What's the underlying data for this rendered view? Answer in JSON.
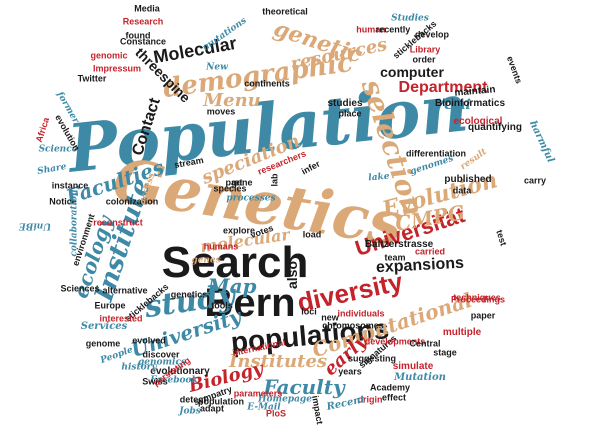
{
  "colors": {
    "blue": "#3e8aa6",
    "tan": "#dba877",
    "red": "#c4232b",
    "black": "#1a1a1a"
  },
  "words": [
    {
      "id": "population",
      "text": "Population",
      "color": "blue",
      "font": "script"
    },
    {
      "id": "genetics",
      "text": "Genetics",
      "color": "tan",
      "font": "script"
    },
    {
      "id": "search",
      "text": "Search",
      "color": "black",
      "font": "sans"
    },
    {
      "id": "bern",
      "text": "Bern",
      "color": "black",
      "font": "sans"
    },
    {
      "id": "demographic",
      "text": "demographic",
      "color": "tan",
      "font": "script"
    },
    {
      "id": "universitat",
      "text": "Universität",
      "color": "red",
      "font": "sans"
    },
    {
      "id": "diversity",
      "text": "diversity",
      "color": "red",
      "font": "sans"
    },
    {
      "id": "study",
      "text": "study",
      "color": "blue",
      "font": "script"
    },
    {
      "id": "populations",
      "text": "populations",
      "color": "black",
      "font": "sans"
    },
    {
      "id": "selection",
      "text": "selection",
      "color": "tan",
      "font": "script"
    },
    {
      "id": "genetic",
      "text": "genetic",
      "color": "tan",
      "font": "script"
    },
    {
      "id": "molecular-top",
      "text": "Molecular",
      "color": "black",
      "font": "sans"
    },
    {
      "id": "menu",
      "text": "Menu",
      "color": "tan",
      "font": "script"
    },
    {
      "id": "institute",
      "text": "Institute",
      "color": "blue",
      "font": "script"
    },
    {
      "id": "faculties",
      "text": "Faculties",
      "color": "blue",
      "font": "script"
    },
    {
      "id": "evolution",
      "text": "Evolution",
      "color": "tan",
      "font": "script"
    },
    {
      "id": "cmpg",
      "text": "CMPG",
      "color": "tan",
      "font": "script"
    },
    {
      "id": "speciation",
      "text": "speciation",
      "color": "tan",
      "font": "script"
    },
    {
      "id": "expansions",
      "text": "expansions",
      "color": "black",
      "font": "sans"
    },
    {
      "id": "computational",
      "text": "Computational",
      "color": "tan",
      "font": "script"
    },
    {
      "id": "university",
      "text": "University",
      "color": "blue",
      "font": "script"
    },
    {
      "id": "molecular-mid",
      "text": "molecular",
      "color": "tan",
      "font": "script"
    },
    {
      "id": "ecology",
      "text": "ecology",
      "color": "blue",
      "font": "script"
    },
    {
      "id": "map",
      "text": "Map",
      "color": "blue",
      "font": "script"
    },
    {
      "id": "institutes",
      "text": "Institutes",
      "color": "tan",
      "font": "script"
    },
    {
      "id": "biology",
      "text": "Biology",
      "color": "red",
      "font": "script"
    },
    {
      "id": "faculty",
      "text": "Faculty",
      "color": "blue",
      "font": "script"
    },
    {
      "id": "early",
      "text": "early",
      "color": "red",
      "font": "script"
    },
    {
      "id": "department",
      "text": "Department",
      "color": "red",
      "font": "sans"
    },
    {
      "id": "computer",
      "text": "computer",
      "color": "black",
      "font": "sans"
    },
    {
      "id": "contact",
      "text": "Contact",
      "color": "black",
      "font": "sans"
    },
    {
      "id": "threespine",
      "text": "threespine",
      "color": "black",
      "font": "sans"
    },
    {
      "id": "resources",
      "text": "resources",
      "color": "tan",
      "font": "script"
    },
    {
      "id": "also",
      "text": "also",
      "color": "black",
      "font": "sans"
    },
    {
      "id": "uni",
      "text": "Uni",
      "color": "blue",
      "font": "script"
    },
    {
      "id": "studies",
      "text": "studies",
      "color": "black",
      "font": "sans"
    },
    {
      "id": "bioinformatics",
      "text": "Bioinformatics",
      "color": "black",
      "font": "sans"
    },
    {
      "id": "ecological",
      "text": "ecological",
      "color": "red",
      "font": "sans"
    },
    {
      "id": "quantifying",
      "text": "quantifying",
      "color": "black",
      "font": "sans"
    },
    {
      "id": "maintain",
      "text": "maintain",
      "color": "black",
      "font": "sans"
    },
    {
      "id": "published",
      "text": "published",
      "color": "black",
      "font": "sans"
    },
    {
      "id": "data",
      "text": "data",
      "color": "black",
      "font": "sans"
    },
    {
      "id": "carry",
      "text": "carry",
      "color": "black",
      "font": "sans"
    },
    {
      "id": "harmful",
      "text": "harmful",
      "color": "blue",
      "font": "script"
    },
    {
      "id": "result",
      "text": "result",
      "color": "tan",
      "font": "script"
    },
    {
      "id": "differentiation",
      "text": "differentiation",
      "color": "black",
      "font": "sans"
    },
    {
      "id": "genomes",
      "text": "genomes",
      "color": "blue",
      "font": "script"
    },
    {
      "id": "lake",
      "text": "lake",
      "color": "blue",
      "font": "script"
    },
    {
      "id": "researchers",
      "text": "researchers",
      "color": "red",
      "font": "sans"
    },
    {
      "id": "infer",
      "text": "infer",
      "color": "black",
      "font": "sans"
    },
    {
      "id": "stream",
      "text": "stream",
      "color": "black",
      "font": "sans"
    },
    {
      "id": "species",
      "text": "species",
      "color": "black",
      "font": "sans"
    },
    {
      "id": "processes",
      "text": "processes",
      "color": "blue",
      "font": "script"
    },
    {
      "id": "balterstrasse",
      "text": "Baltzerstrasse",
      "color": "black",
      "font": "sans"
    },
    {
      "id": "carried",
      "text": "carried",
      "color": "red",
      "font": "sans"
    },
    {
      "id": "team",
      "text": "team",
      "color": "black",
      "font": "sans"
    },
    {
      "id": "techniques",
      "text": "techniques",
      "color": "red",
      "font": "sans"
    },
    {
      "id": "explore",
      "text": "explore",
      "color": "black",
      "font": "sans"
    },
    {
      "id": "votes",
      "text": "votes",
      "color": "black",
      "font": "sans"
    },
    {
      "id": "load",
      "text": "load",
      "color": "black",
      "font": "sans"
    },
    {
      "id": "humans",
      "text": "humans",
      "color": "red",
      "font": "sans"
    },
    {
      "id": "alternative",
      "text": "alternative",
      "color": "black",
      "font": "sans"
    },
    {
      "id": "sticklebacks-left",
      "text": "sticklebacks",
      "color": "black",
      "font": "sans"
    },
    {
      "id": "europe",
      "text": "Europe",
      "color": "black",
      "font": "sans"
    },
    {
      "id": "interested",
      "text": "interested",
      "color": "red",
      "font": "sans"
    },
    {
      "id": "services",
      "text": "Services",
      "color": "blue",
      "font": "script"
    },
    {
      "id": "evolved",
      "text": "evolved",
      "color": "black",
      "font": "sans"
    },
    {
      "id": "discover",
      "text": "discover",
      "color": "black",
      "font": "sans"
    },
    {
      "id": "genomics",
      "text": "genomics",
      "color": "blue",
      "font": "script"
    },
    {
      "id": "evolutionary",
      "text": "evolutionary",
      "color": "black",
      "font": "sans"
    },
    {
      "id": "international",
      "text": "international",
      "color": "red",
      "font": "sans"
    },
    {
      "id": "chromosomes",
      "text": "chromosomes",
      "color": "black",
      "font": "sans"
    },
    {
      "id": "individuals",
      "text": "individuals",
      "color": "red",
      "font": "sans"
    },
    {
      "id": "loci",
      "text": "loci",
      "color": "black",
      "font": "sans"
    },
    {
      "id": "new",
      "text": "new",
      "color": "black",
      "font": "sans"
    },
    {
      "id": "proceedings",
      "text": "Proceedings",
      "color": "red",
      "font": "sans"
    },
    {
      "id": "paper",
      "text": "paper",
      "color": "black",
      "font": "sans"
    },
    {
      "id": "multiple",
      "text": "multiple",
      "color": "red",
      "font": "sans"
    },
    {
      "id": "stage",
      "text": "stage",
      "color": "black",
      "font": "sans"
    },
    {
      "id": "signatures",
      "text": "signatures",
      "color": "black",
      "font": "sans"
    },
    {
      "id": "developments",
      "text": "developments",
      "color": "red",
      "font": "sans"
    },
    {
      "id": "central",
      "text": "Central",
      "color": "black",
      "font": "sans"
    },
    {
      "id": "simulate",
      "text": "simulate",
      "color": "red",
      "font": "sans"
    },
    {
      "id": "suggesting",
      "text": "suggesting",
      "color": "black",
      "font": "sans"
    },
    {
      "id": "mutation",
      "text": "Mutation",
      "color": "blue",
      "font": "script"
    },
    {
      "id": "academy",
      "text": "Academy",
      "color": "black",
      "font": "sans"
    },
    {
      "id": "effect",
      "text": "effect",
      "color": "black",
      "font": "sans"
    },
    {
      "id": "origin",
      "text": "origin",
      "color": "red",
      "font": "sans"
    },
    {
      "id": "recent",
      "text": "Recent",
      "color": "blue",
      "font": "script"
    },
    {
      "id": "homepage",
      "text": "Homepage",
      "color": "blue",
      "font": "script"
    },
    {
      "id": "plos",
      "text": "PloS",
      "color": "red",
      "font": "sans"
    },
    {
      "id": "email",
      "text": "E-Mail",
      "color": "blue",
      "font": "script"
    },
    {
      "id": "parameters",
      "text": "parameters",
      "color": "red",
      "font": "sans"
    },
    {
      "id": "impact",
      "text": "impact",
      "color": "black",
      "font": "sans"
    },
    {
      "id": "sympatry",
      "text": "sympatry",
      "color": "black",
      "font": "sans"
    },
    {
      "id": "adapt",
      "text": "adapt",
      "color": "black",
      "font": "sans"
    },
    {
      "id": "population-small",
      "text": "population",
      "color": "black",
      "font": "sans"
    },
    {
      "id": "detect",
      "text": "detect",
      "color": "black",
      "font": "sans"
    },
    {
      "id": "jobs",
      "text": "Jobs",
      "color": "blue",
      "font": "script"
    },
    {
      "id": "facebook",
      "text": "Facebook",
      "color": "blue",
      "font": "script"
    },
    {
      "id": "swiss",
      "text": "Swiss",
      "color": "black",
      "font": "sans"
    },
    {
      "id": "persisting",
      "text": "persisting",
      "color": "red",
      "font": "sans"
    },
    {
      "id": "history",
      "text": "history",
      "color": "blue",
      "font": "script"
    },
    {
      "id": "people",
      "text": "People",
      "color": "blue",
      "font": "script"
    },
    {
      "id": "genome",
      "text": "genome",
      "color": "black",
      "font": "sans"
    },
    {
      "id": "reconstruct",
      "text": "reconstruct",
      "color": "red",
      "font": "sans"
    },
    {
      "id": "colonization",
      "text": "colonization",
      "color": "black",
      "font": "sans"
    },
    {
      "id": "notice",
      "text": "Notice",
      "color": "black",
      "font": "sans"
    },
    {
      "id": "instance",
      "text": "instance",
      "color": "black",
      "font": "sans"
    },
    {
      "id": "share",
      "text": "Share",
      "color": "blue",
      "font": "script"
    },
    {
      "id": "science",
      "text": "Science",
      "color": "blue",
      "font": "script"
    },
    {
      "id": "africa",
      "text": "Africa",
      "color": "red",
      "font": "sans"
    },
    {
      "id": "collaboration",
      "text": "collaboration",
      "color": "blue",
      "font": "script"
    },
    {
      "id": "sciences",
      "text": "Sciences",
      "color": "black",
      "font": "sans"
    },
    {
      "id": "twitter",
      "text": "Twitter",
      "color": "black",
      "font": "sans"
    },
    {
      "id": "impressum",
      "text": "Impressum",
      "color": "red",
      "font": "sans"
    },
    {
      "id": "genomic",
      "text": "genomic",
      "color": "red",
      "font": "sans"
    },
    {
      "id": "found",
      "text": "found",
      "color": "black",
      "font": "sans"
    },
    {
      "id": "constance",
      "text": "Constance",
      "color": "black",
      "font": "sans"
    },
    {
      "id": "research",
      "text": "Research",
      "color": "red",
      "font": "sans"
    },
    {
      "id": "media",
      "text": "Media",
      "color": "black",
      "font": "sans"
    },
    {
      "id": "theoretical",
      "text": "theoretical",
      "color": "black",
      "font": "sans"
    },
    {
      "id": "human",
      "text": "human",
      "color": "red",
      "font": "sans"
    },
    {
      "id": "recently",
      "text": "recently",
      "color": "black",
      "font": "sans"
    },
    {
      "id": "studies-top",
      "text": "Studies",
      "color": "blue",
      "font": "script"
    },
    {
      "id": "develop",
      "text": "develop",
      "color": "black",
      "font": "sans"
    },
    {
      "id": "library",
      "text": "Library",
      "color": "red",
      "font": "sans"
    },
    {
      "id": "order",
      "text": "order",
      "color": "black",
      "font": "sans"
    },
    {
      "id": "sticklebacks-top",
      "text": "sticklebacks",
      "color": "black",
      "font": "sans"
    },
    {
      "id": "mutations",
      "text": "mutations",
      "color": "blue",
      "font": "script"
    },
    {
      "id": "new-top",
      "text": "New",
      "color": "blue",
      "font": "script"
    },
    {
      "id": "continents",
      "text": "continents",
      "color": "black",
      "font": "sans"
    },
    {
      "id": "moves",
      "text": "moves",
      "color": "black",
      "font": "sans"
    },
    {
      "id": "place",
      "text": "place",
      "color": "black",
      "font": "sans"
    },
    {
      "id": "events",
      "text": "events",
      "color": "black",
      "font": "sans"
    },
    {
      "id": "former",
      "text": "former",
      "color": "blue",
      "font": "script"
    },
    {
      "id": "evolution-small",
      "text": "evolution",
      "color": "black",
      "font": "sans"
    },
    {
      "id": "access",
      "text": "access",
      "color": "tan",
      "font": "script"
    },
    {
      "id": "genes",
      "text": "genes",
      "color": "tan",
      "font": "script"
    },
    {
      "id": "genetics-small",
      "text": "genetics",
      "color": "black",
      "font": "sans"
    },
    {
      "id": "tools",
      "text": "tools",
      "color": "black",
      "font": "sans"
    },
    {
      "id": "environment",
      "text": "environment",
      "color": "black",
      "font": "sans"
    },
    {
      "id": "unibe",
      "text": "UniBE",
      "color": "blue",
      "font": "script"
    },
    {
      "id": "test",
      "text": "test",
      "color": "black",
      "font": "sans"
    },
    {
      "id": "part",
      "text": "part",
      "color": "black",
      "font": "sans"
    },
    {
      "id": "gene",
      "text": "gene",
      "color": "black",
      "font": "sans"
    },
    {
      "id": "years",
      "text": "years",
      "color": "black",
      "font": "sans"
    },
    {
      "id": "lab",
      "text": "lab",
      "color": "black",
      "font": "sans"
    }
  ]
}
